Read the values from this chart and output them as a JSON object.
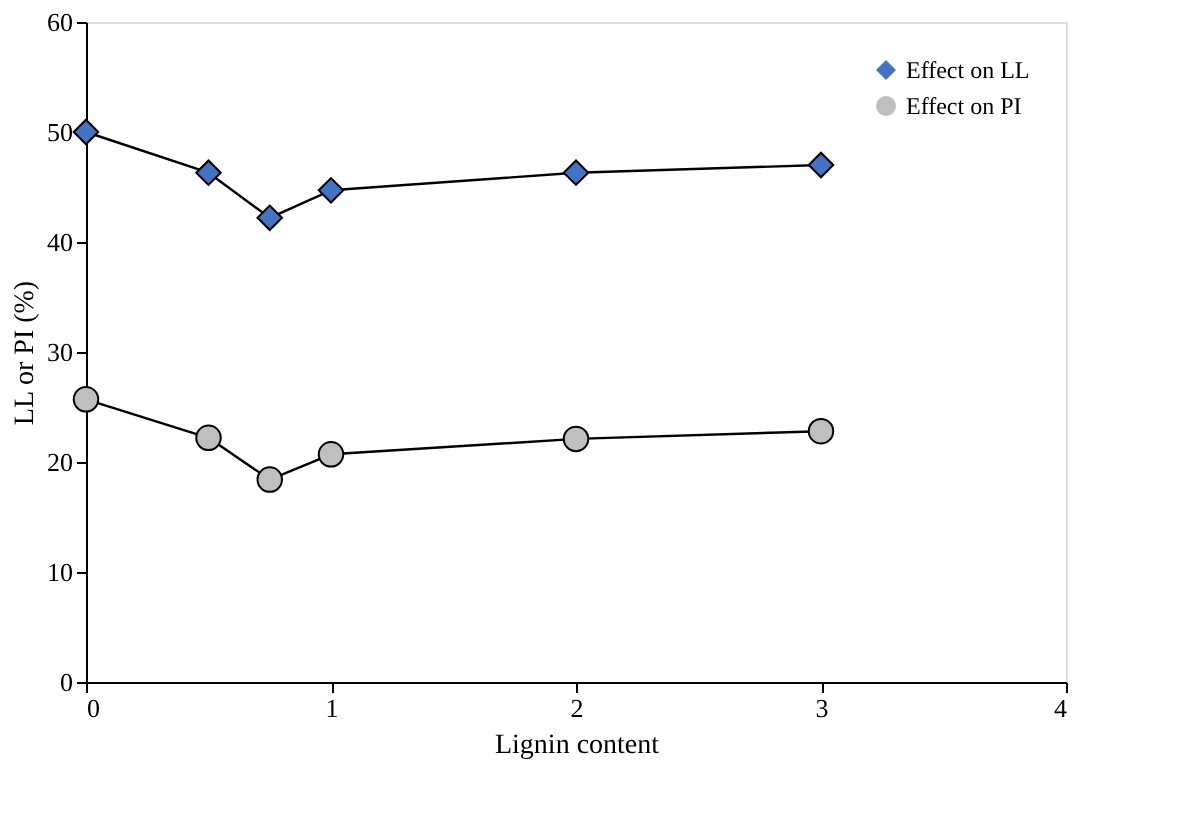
{
  "chart_data": {
    "type": "line",
    "xlabel": "Lignin  content",
    "ylabel": "LL or PI (%)",
    "x": [
      0,
      0.5,
      0.75,
      1,
      2,
      3
    ],
    "series": [
      {
        "name": "Effect on LL",
        "color": "#4472c4",
        "marker": "diamond",
        "values": [
          50,
          46.3,
          42.2,
          44.7,
          46.3,
          47
        ]
      },
      {
        "name": "Effect on PI",
        "color": "#bfbfbf",
        "marker": "circle",
        "values": [
          25.7,
          22.2,
          18.4,
          20.7,
          22.1,
          22.8
        ]
      }
    ],
    "xlim": [
      0,
      4
    ],
    "xticks": [
      0,
      1,
      2,
      3,
      4
    ],
    "ylim": [
      0,
      60
    ],
    "yticks": [
      0,
      10,
      20,
      30,
      40,
      50,
      60
    ],
    "grid": false,
    "legend": "top right"
  }
}
